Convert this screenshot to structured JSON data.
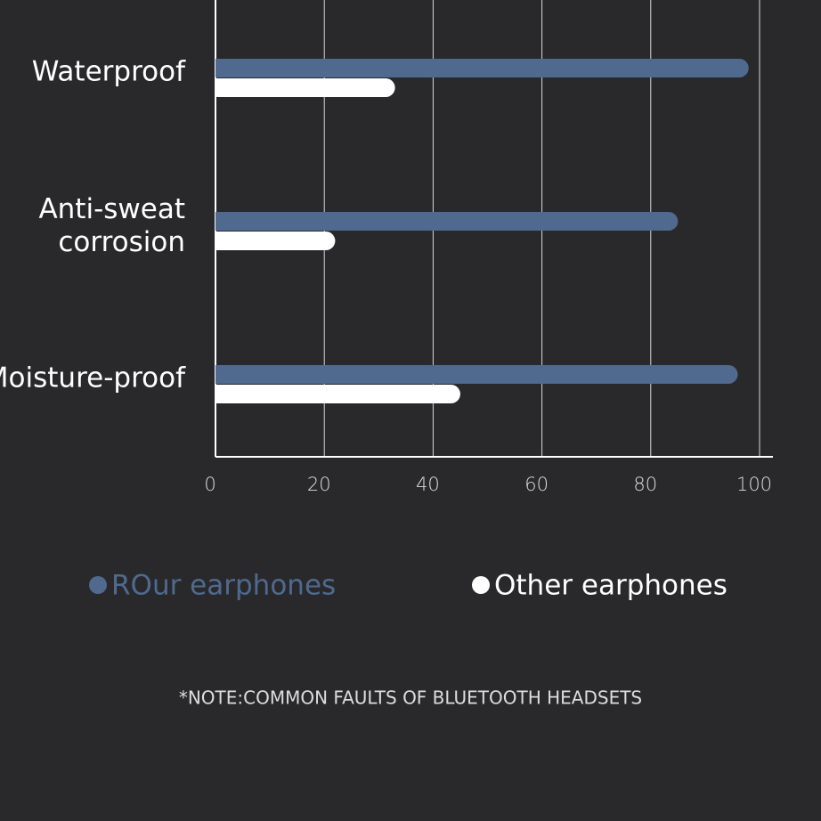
{
  "chart_data": {
    "type": "hbar",
    "categories": [
      "Waterproof",
      "Anti-sweat corrosion",
      "Moisture-proof"
    ],
    "series": [
      {
        "name": "ROur earphones",
        "color": "#4f6a8e",
        "values": [
          98,
          85,
          96
        ]
      },
      {
        "name": "Other earphones",
        "color": "#ffffff",
        "values": [
          33,
          22,
          45
        ]
      }
    ],
    "xlim": [
      0,
      100
    ],
    "xticks": [
      0,
      20,
      40,
      60,
      80,
      100
    ],
    "grid": true,
    "note": "*NOTE:COMMON FAULTS OF BLUETOOTH HEADSETS"
  }
}
